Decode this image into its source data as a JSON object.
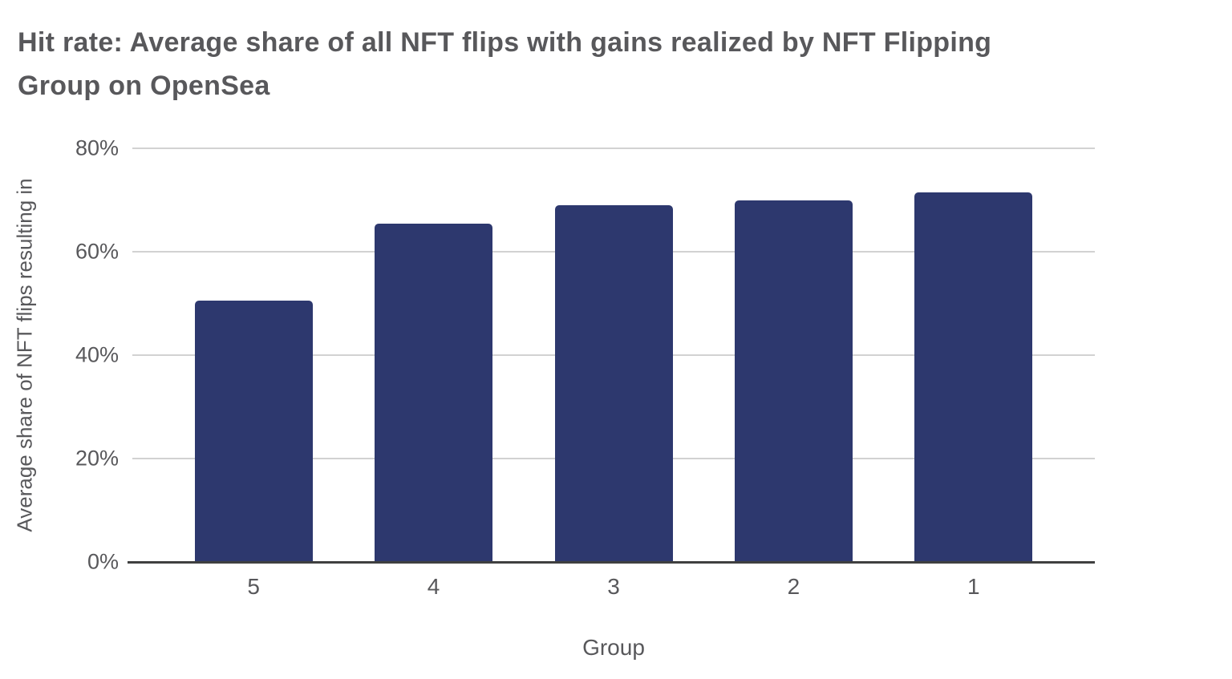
{
  "colors": {
    "bar": "#2d386e",
    "text": "#58585b",
    "grid": "#d2d2d2",
    "axis": "#3f4040",
    "background": "#ffffff"
  },
  "chart_data": {
    "type": "bar",
    "title": "Hit rate: Average share of all NFT flips with gains realized by NFT Flipping Group on OpenSea",
    "categories": [
      "5",
      "4",
      "3",
      "2",
      "1"
    ],
    "values": [
      50.5,
      65.5,
      69,
      70,
      71.5
    ],
    "xlabel": "Group",
    "ylabel": "Average share of NFT flips resulting in",
    "ylim": [
      0,
      80
    ],
    "yticks": [
      0,
      20,
      40,
      60,
      80
    ],
    "ytick_labels": [
      "0%",
      "20%",
      "40%",
      "60%",
      "80%"
    ],
    "grid": true,
    "legend": false,
    "bar_color": "#2d386e"
  }
}
